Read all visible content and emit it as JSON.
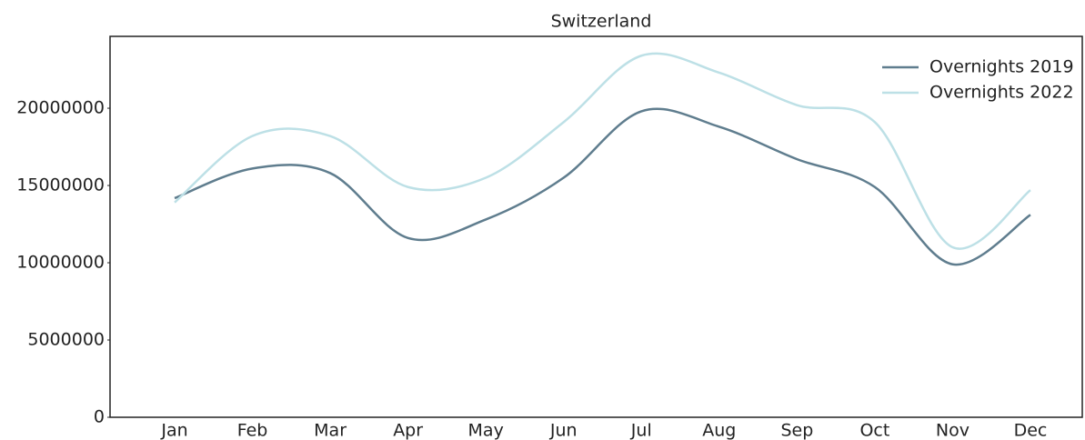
{
  "chart_data": {
    "type": "line",
    "title": "Switzerland",
    "categories": [
      "Jan",
      "Feb",
      "Mar",
      "Apr",
      "May",
      "Jun",
      "Jul",
      "Aug",
      "Sep",
      "Oct",
      "Nov",
      "Dec"
    ],
    "series": [
      {
        "name": "Overnights 2019",
        "color": "#5f7d8e",
        "values": [
          14180000,
          16100000,
          15800000,
          11600000,
          12800000,
          15500000,
          19800000,
          18800000,
          16700000,
          14900000,
          9900000,
          13100000
        ]
      },
      {
        "name": "Overnights 2022",
        "color": "#bde0e6",
        "values": [
          13900000,
          18200000,
          18200000,
          14900000,
          15500000,
          19100000,
          23400000,
          22300000,
          20200000,
          19100000,
          11000000,
          14700000
        ]
      }
    ],
    "ylim": [
      0,
      24650000
    ],
    "yticks": [
      0,
      5000000,
      10000000,
      15000000,
      20000000
    ],
    "grid": false,
    "legend": "upper right",
    "smooth": true
  }
}
